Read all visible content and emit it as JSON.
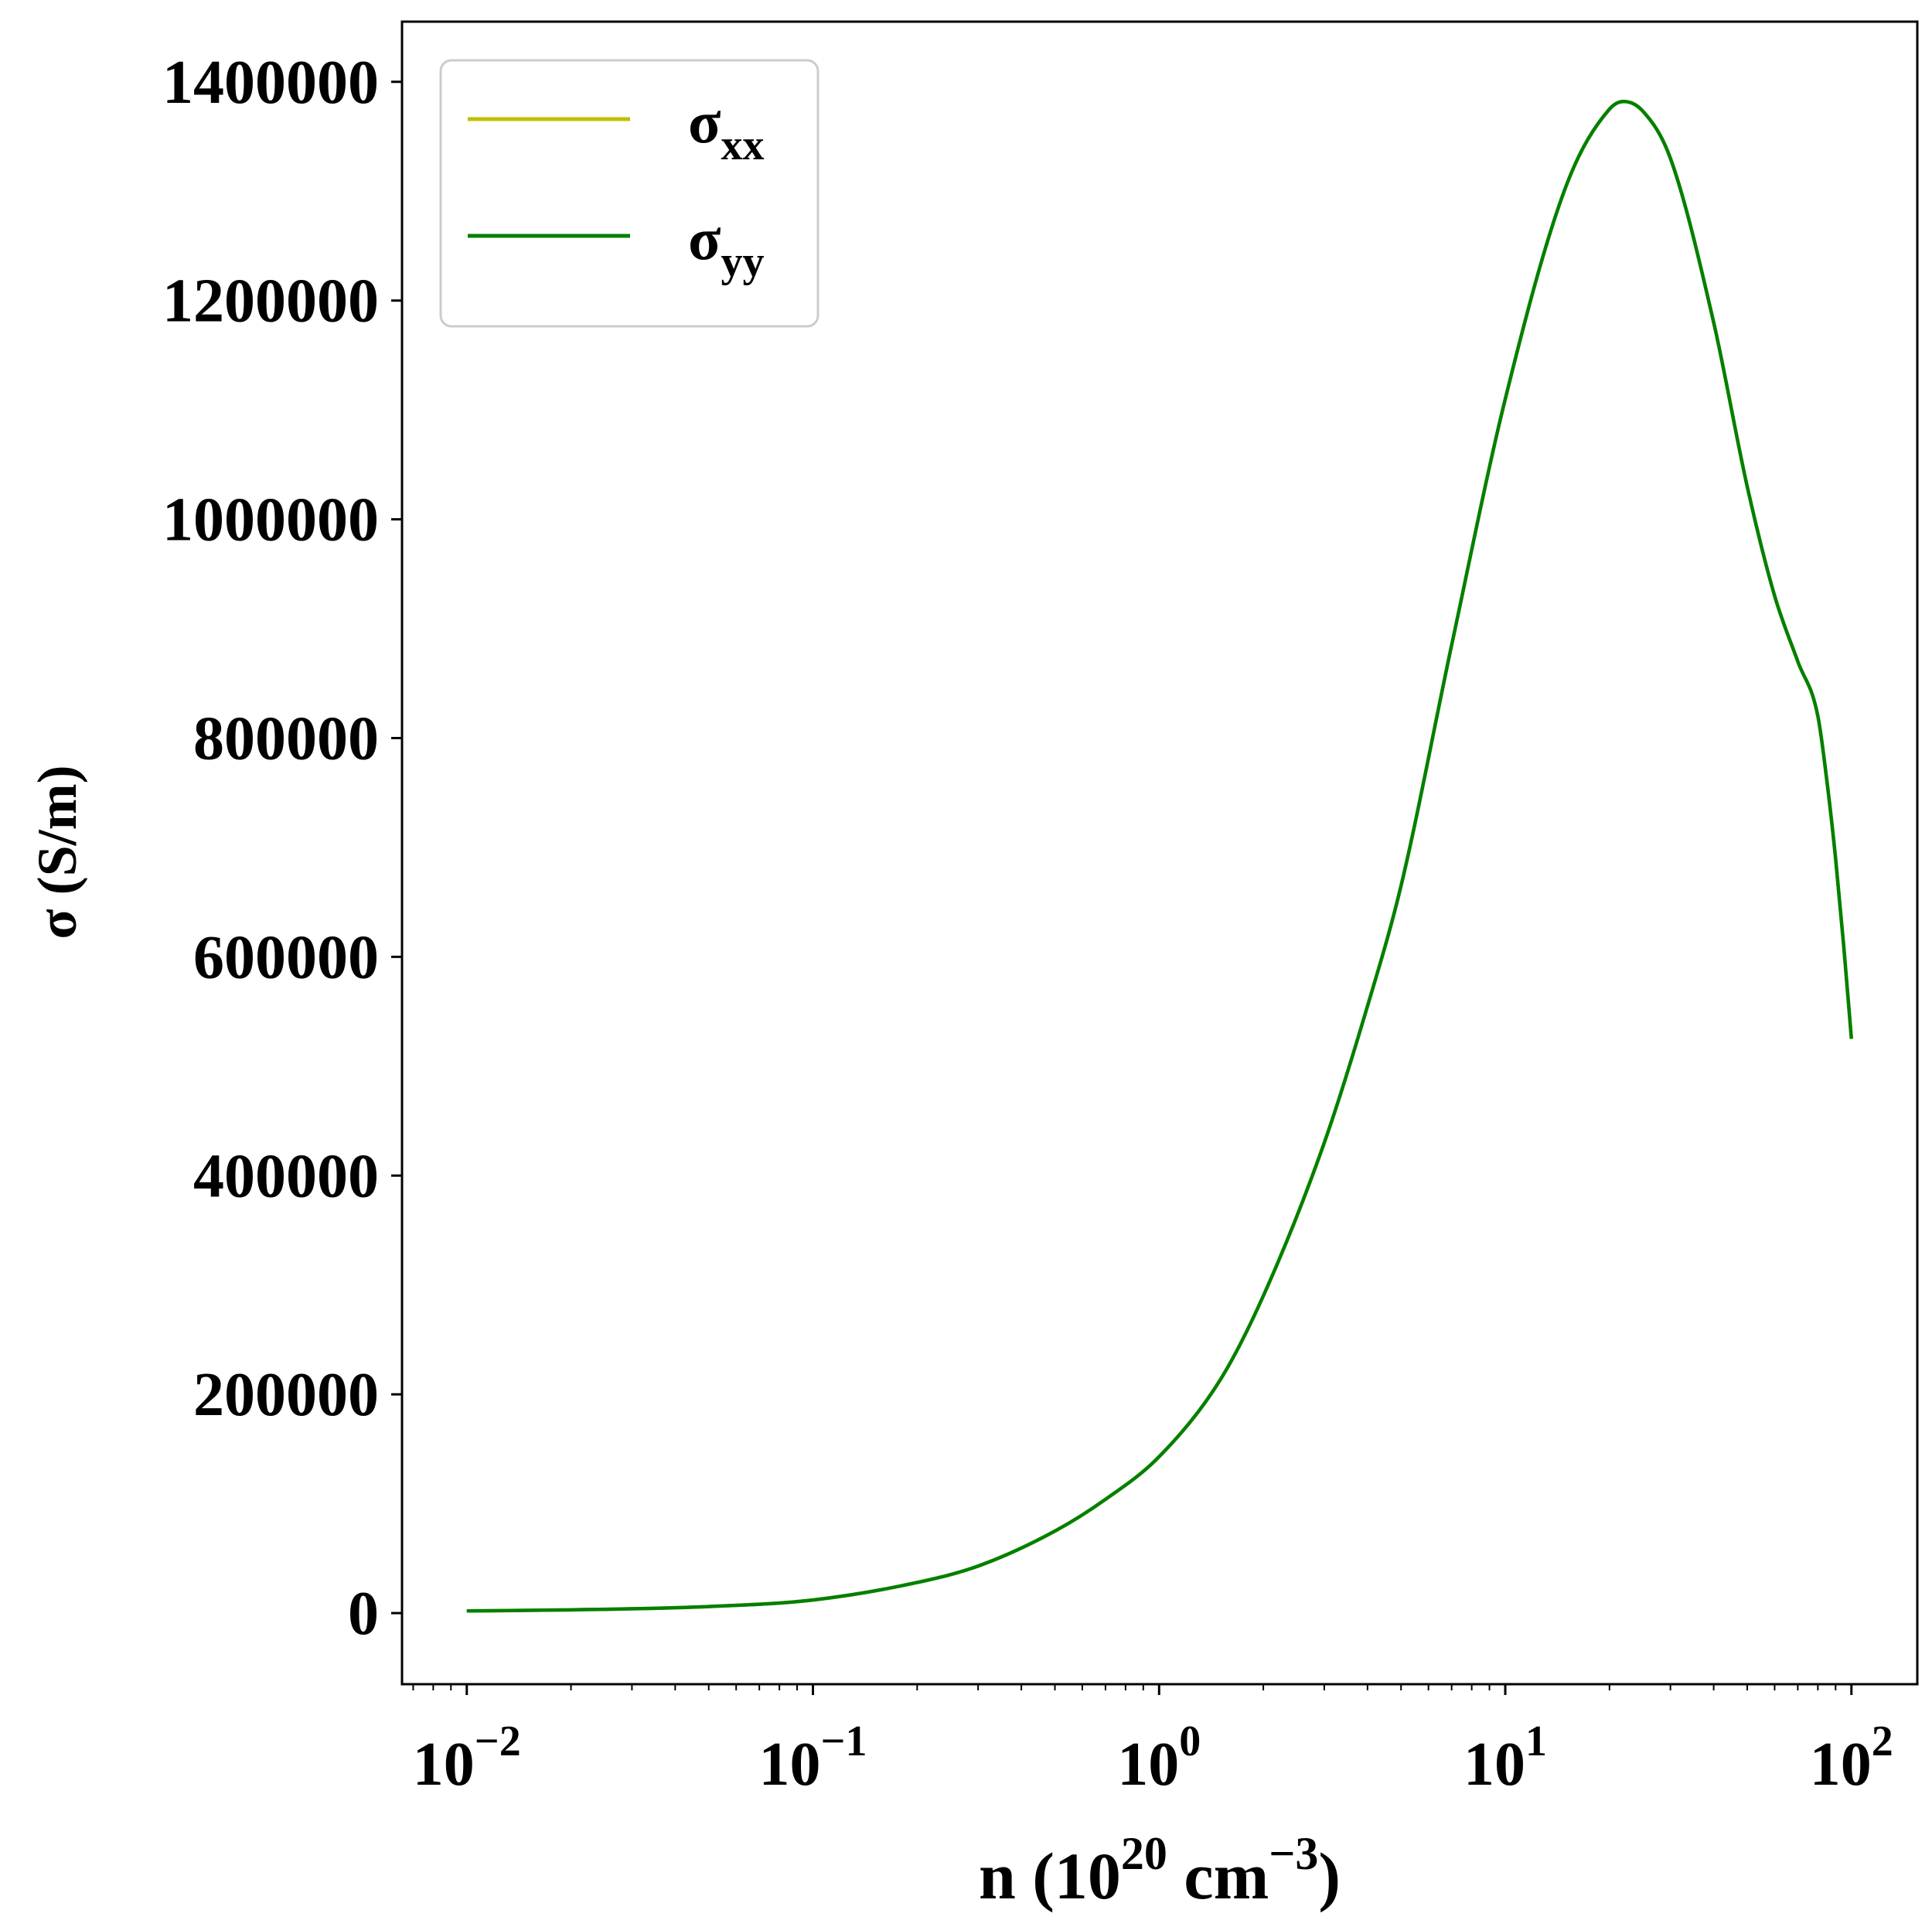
{
  "chart_data": {
    "type": "line",
    "title": "",
    "xlabel": {
      "base": "n (10",
      "sup1": "20",
      "mid": " cm",
      "sup2": "−3",
      "end": ")"
    },
    "ylabel": "σ (S/m)",
    "xscale": "log",
    "xlim": [
      0.0065,
      155
    ],
    "ylim": [
      -65000,
      1455000
    ],
    "grid": false,
    "legend": "top-left",
    "x_ticks": [
      {
        "base": "10",
        "exp": "−2"
      },
      {
        "base": "10",
        "exp": "−1"
      },
      {
        "base": "10",
        "exp": "0"
      },
      {
        "base": "10",
        "exp": "1"
      },
      {
        "base": "10",
        "exp": "2"
      }
    ],
    "x_tick_values": [
      0.01,
      0.1,
      1,
      10,
      100
    ],
    "y_ticks": [
      "0",
      "200000",
      "400000",
      "600000",
      "800000",
      "1000000",
      "1200000",
      "1400000"
    ],
    "y_tick_values": [
      0,
      200000,
      400000,
      600000,
      800000,
      1000000,
      1200000,
      1400000
    ],
    "x": [
      0.01,
      0.02,
      0.05,
      0.1,
      0.2,
      0.3,
      0.5,
      0.7,
      1,
      1.5,
      2,
      3,
      4,
      5,
      7,
      10,
      15,
      20,
      22,
      25,
      30,
      40,
      50,
      60,
      70,
      80,
      85,
      90,
      95,
      100
    ],
    "series": [
      {
        "name": {
          "base": "σ",
          "sub": "xx"
        },
        "color": "#bfbf00",
        "values": [
          2000,
          3000,
          6000,
          12000,
          28000,
          43000,
          75000,
          104000,
          143000,
          213000,
          290000,
          430000,
          555000,
          665000,
          885000,
          1110000,
          1305000,
          1375000,
          1382000,
          1373000,
          1330000,
          1180000,
          1030000,
          930000,
          870000,
          820000,
          760000,
          690000,
          610000,
          525000
        ]
      },
      {
        "name": {
          "base": "σ",
          "sub": "yy"
        },
        "color": "#008000",
        "values": [
          2000,
          3000,
          6000,
          12000,
          28000,
          43000,
          75000,
          104000,
          143000,
          213000,
          290000,
          430000,
          555000,
          665000,
          885000,
          1110000,
          1305000,
          1375000,
          1382000,
          1373000,
          1330000,
          1180000,
          1030000,
          930000,
          870000,
          820000,
          760000,
          690000,
          610000,
          525000
        ]
      }
    ]
  }
}
